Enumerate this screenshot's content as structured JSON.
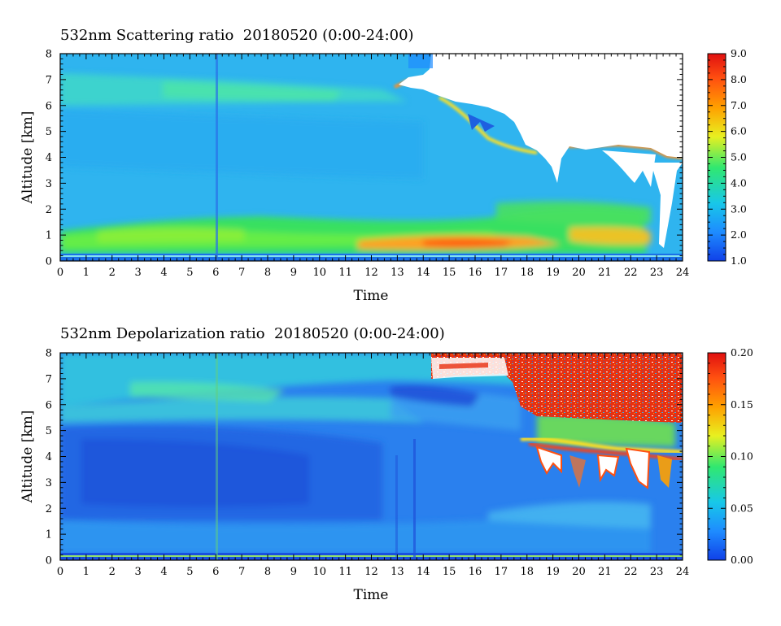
{
  "chart_data": [
    {
      "type": "heatmap",
      "title": "532nm Scattering ratio  20180520 (0:00-24:00)",
      "xlabel": "Time",
      "ylabel": "Altitude [km]",
      "xlim": [
        0,
        24
      ],
      "ylim": [
        0,
        8
      ],
      "x_ticks": [
        "0",
        "1",
        "2",
        "3",
        "4",
        "5",
        "6",
        "7",
        "8",
        "9",
        "10",
        "11",
        "12",
        "13",
        "14",
        "15",
        "16",
        "17",
        "18",
        "19",
        "20",
        "21",
        "22",
        "23",
        "24"
      ],
      "y_ticks": [
        "0",
        "1",
        "2",
        "3",
        "4",
        "5",
        "6",
        "7",
        "8"
      ],
      "colorbar": {
        "min": 1.0,
        "max": 9.0,
        "ticks": [
          "1.0",
          "2.0",
          "3.0",
          "4.0",
          "5.0",
          "6.0",
          "7.0",
          "8.0",
          "9.0"
        ],
        "colormap": [
          "#1040e8",
          "#1e8cff",
          "#18c8e8",
          "#30e870",
          "#e8f020",
          "#ffa000",
          "#ff5010",
          "#e01010"
        ]
      },
      "colors": {
        "boundary_layer": "#40e050",
        "aerosol_core": "#ff9030",
        "free_troposphere": "#30b8f0",
        "cloud_top": "#ffffff"
      }
    },
    {
      "type": "heatmap",
      "title": "532nm Depolarization ratio  20180520 (0:00-24:00)",
      "xlabel": "Time",
      "ylabel": "Altitude [km]",
      "xlim": [
        0,
        24
      ],
      "ylim": [
        0,
        8
      ],
      "x_ticks": [
        "0",
        "1",
        "2",
        "3",
        "4",
        "5",
        "6",
        "7",
        "8",
        "9",
        "10",
        "11",
        "12",
        "13",
        "14",
        "15",
        "16",
        "17",
        "18",
        "19",
        "20",
        "21",
        "22",
        "23",
        "24"
      ],
      "y_ticks": [
        "0",
        "1",
        "2",
        "3",
        "4",
        "5",
        "6",
        "7",
        "8"
      ],
      "colorbar": {
        "min": 0.0,
        "max": 0.2,
        "ticks": [
          "0.00",
          "0.05",
          "0.10",
          "0.15",
          "0.20"
        ],
        "colormap": [
          "#1040e8",
          "#1e8cff",
          "#18c8e8",
          "#30e870",
          "#e8f020",
          "#ffa000",
          "#ff5010",
          "#e01010"
        ]
      },
      "colors": {
        "lower_layer": "#2c7ef0",
        "upper_layer": "#30c0e0",
        "ice_cloud": "#ff5010",
        "cloud_top": "#ffffff"
      }
    }
  ]
}
